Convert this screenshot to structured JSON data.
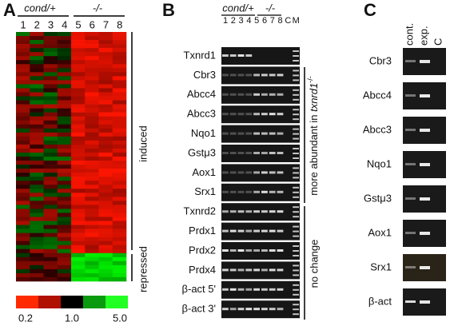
{
  "panel_a": {
    "label": "A",
    "groups": [
      "cond/+",
      "-/-"
    ],
    "lanes": [
      1,
      2,
      3,
      4,
      5,
      6,
      7,
      8
    ],
    "clusters": [
      "induced",
      "repressed"
    ],
    "scale": [
      "0.2",
      "1.0",
      "5.0"
    ]
  },
  "panel_b": {
    "label": "B",
    "groups": [
      "cond/+",
      "-/-"
    ],
    "lanes": [
      1,
      2,
      3,
      4,
      5,
      6,
      7,
      8,
      "C",
      "M"
    ],
    "genes": [
      "Txnrd1",
      "Cbr3",
      "Abcc4",
      "Abcc3",
      "Nqo1",
      "Gstμ3",
      "Aox1",
      "Srx1",
      "Txnrd2",
      "Prdx1",
      "Prdx2",
      "Prdx4",
      "β-act 5'",
      "β-act 3'"
    ],
    "bracket_1": {
      "prefix": "more abundant in ",
      "gene": "txnrd1",
      "genotype": "-/-"
    },
    "bracket_2": "no change"
  },
  "panel_c": {
    "label": "C",
    "columns": [
      "cont.",
      "exp.",
      "C"
    ],
    "genes": [
      "Cbr3",
      "Abcc4",
      "Abcc3",
      "Nqo1",
      "Gstμ3",
      "Aox1",
      "Srx1",
      "β-act"
    ]
  }
}
